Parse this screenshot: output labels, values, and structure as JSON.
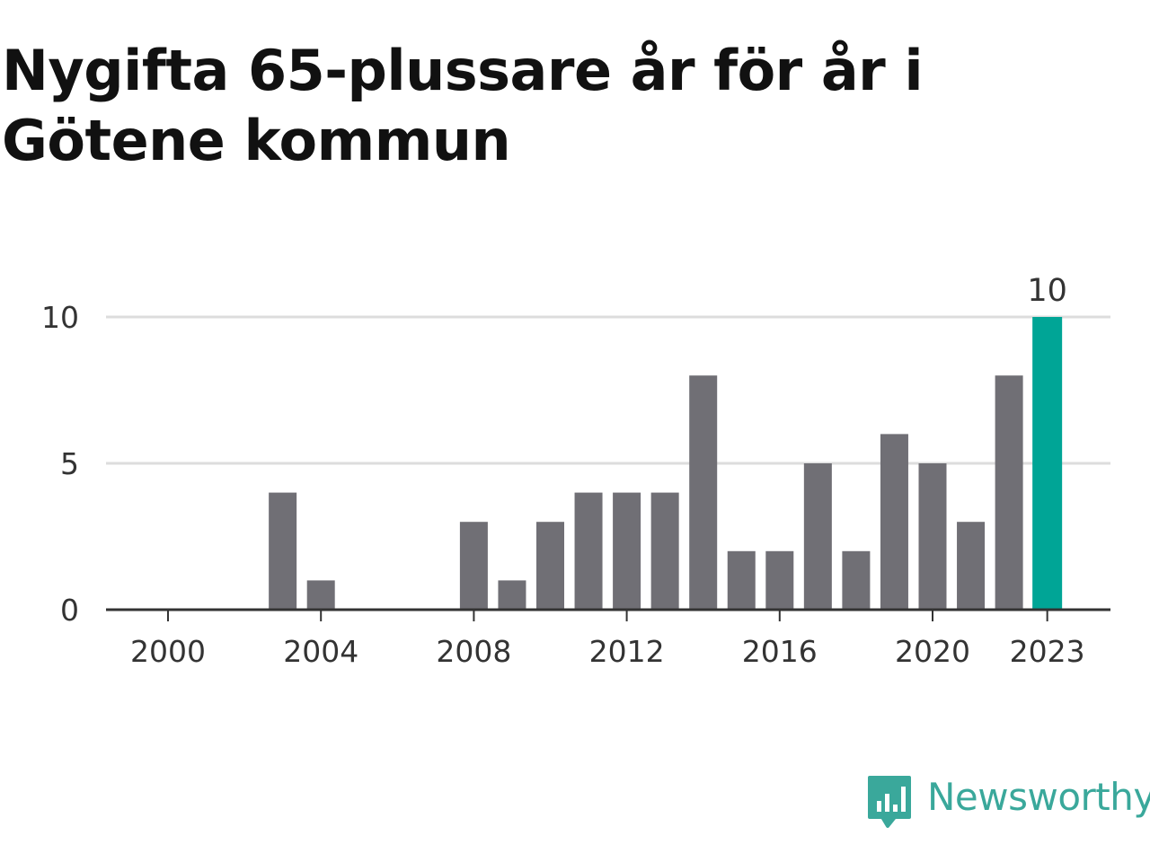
{
  "title": "Nygifta 65-plussare år för år i Götene kommun",
  "brand": {
    "name": "Newsworthy",
    "icon": "newsworthy-logo-icon",
    "color": "#3aa89b"
  },
  "chart_data": {
    "type": "bar",
    "title": "Nygifta 65-plussare år för år i Götene kommun",
    "xlabel": "",
    "ylabel": "",
    "categories": [
      2000,
      2001,
      2002,
      2003,
      2004,
      2005,
      2006,
      2007,
      2008,
      2009,
      2010,
      2011,
      2012,
      2013,
      2014,
      2015,
      2016,
      2017,
      2018,
      2019,
      2020,
      2021,
      2022,
      2023
    ],
    "values": [
      0,
      0,
      0,
      4,
      1,
      0,
      0,
      0,
      3,
      1,
      3,
      4,
      4,
      4,
      8,
      2,
      2,
      5,
      2,
      6,
      5,
      3,
      8,
      10
    ],
    "ylim": [
      0,
      10
    ],
    "yticks": [
      0,
      5,
      10
    ],
    "xtick_labels": [
      "2000",
      "2004",
      "2008",
      "2012",
      "2016",
      "2020",
      "2023"
    ],
    "highlight": {
      "category": 2023,
      "label": "10"
    },
    "colors": {
      "bar": "#706f75",
      "highlight": "#00a596",
      "grid": "#dddddd",
      "axis": "#333333"
    },
    "grid": true,
    "legend": "none"
  }
}
